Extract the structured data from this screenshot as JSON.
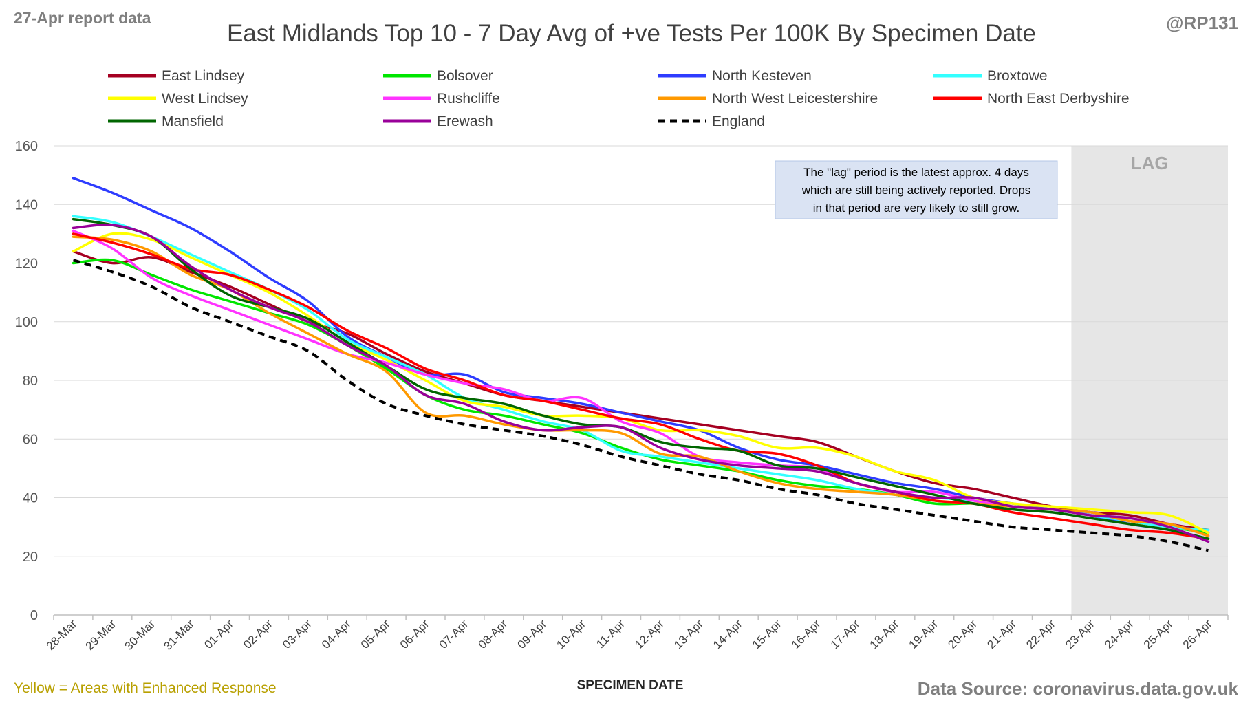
{
  "header": {
    "report_note": "27-Apr report data",
    "handle": "@RP131"
  },
  "footer": {
    "enhanced_note": "Yellow = Areas with Enhanced Response",
    "source": "Data Source: coronavirus.data.gov.uk"
  },
  "colors": {
    "lag_shading": "#e6e6e6",
    "grid": "#d9d9d9",
    "enhanced_note": "#b8a000",
    "muted_text": "#7f7f7f"
  },
  "chart_data": {
    "type": "line",
    "title": "East Midlands Top 10 - 7 Day Avg of +ve Tests Per 100K By Specimen Date",
    "xlabel": "SPECIMEN DATE",
    "ylabel": "",
    "ylim": [
      0,
      160
    ],
    "yticks": [
      0,
      20,
      40,
      60,
      80,
      100,
      120,
      140,
      160
    ],
    "grid": true,
    "legend_position": "top",
    "lag_label": "LAG",
    "lag_start": "23-Apr",
    "lag_end": "26-Apr",
    "annotation": [
      "The \"lag\" period is the latest approx. 4 days",
      "which are still being actively reported.  Drops",
      "in that period are very likely to still grow."
    ],
    "categories": [
      "28-Mar",
      "29-Mar",
      "30-Mar",
      "31-Mar",
      "01-Apr",
      "02-Apr",
      "03-Apr",
      "04-Apr",
      "05-Apr",
      "06-Apr",
      "07-Apr",
      "08-Apr",
      "09-Apr",
      "10-Apr",
      "11-Apr",
      "12-Apr",
      "13-Apr",
      "14-Apr",
      "15-Apr",
      "16-Apr",
      "17-Apr",
      "18-Apr",
      "19-Apr",
      "20-Apr",
      "21-Apr",
      "22-Apr",
      "23-Apr",
      "24-Apr",
      "25-Apr",
      "26-Apr"
    ],
    "series": [
      {
        "name": "East Lindsey",
        "color": "#a50021",
        "dash": false,
        "values": [
          124,
          120,
          122,
          117,
          112,
          106,
          100,
          96,
          89,
          83,
          79,
          75,
          73,
          71,
          69,
          67,
          65,
          63,
          61,
          59,
          54,
          49,
          45,
          43,
          40,
          37,
          35,
          34,
          31,
          29
        ]
      },
      {
        "name": "Bolsover",
        "color": "#00e600",
        "dash": false,
        "values": [
          120,
          121,
          116,
          111,
          107,
          103,
          99,
          92,
          84,
          75,
          70,
          68,
          65,
          62,
          57,
          53,
          51,
          49,
          46,
          44,
          43,
          41,
          38,
          38,
          37,
          36,
          35,
          32,
          30,
          28
        ]
      },
      {
        "name": "North Kesteven",
        "color": "#2e3cff",
        "dash": false,
        "values": [
          149,
          144,
          138,
          132,
          124,
          115,
          107,
          95,
          88,
          82,
          82,
          76,
          74,
          72,
          69,
          66,
          63,
          57,
          53,
          51,
          48,
          45,
          43,
          40,
          38,
          36,
          34,
          31,
          29,
          26
        ]
      },
      {
        "name": "Broxtowe",
        "color": "#33ffff",
        "dash": false,
        "values": [
          136,
          134,
          129,
          123,
          117,
          111,
          104,
          94,
          88,
          82,
          74,
          70,
          66,
          63,
          56,
          54,
          52,
          50,
          48,
          46,
          43,
          41,
          40,
          39,
          37,
          36,
          34,
          32,
          30,
          29
        ]
      },
      {
        "name": "West Lindsey",
        "color": "#ffff00",
        "dash": false,
        "values": [
          124,
          130,
          128,
          122,
          116,
          110,
          102,
          93,
          87,
          80,
          73,
          71,
          68,
          68,
          67,
          63,
          63,
          61,
          57,
          57,
          54,
          49,
          46,
          40,
          38,
          37,
          36,
          35,
          34,
          28
        ]
      },
      {
        "name": "Rushcliffe",
        "color": "#ff33ff",
        "dash": false,
        "values": [
          131,
          125,
          115,
          109,
          104,
          99,
          94,
          89,
          86,
          82,
          79,
          77,
          73,
          74,
          66,
          62,
          54,
          52,
          51,
          50,
          45,
          42,
          42,
          39,
          37,
          36,
          35,
          32,
          31,
          27
        ]
      },
      {
        "name": "North West Leicestershire",
        "color": "#ff9900",
        "dash": false,
        "values": [
          129,
          128,
          124,
          116,
          111,
          103,
          96,
          89,
          83,
          69,
          68,
          65,
          63,
          63,
          62,
          55,
          54,
          49,
          45,
          43,
          42,
          41,
          39,
          38,
          37,
          36,
          35,
          32,
          31,
          27
        ]
      },
      {
        "name": "North East Derbyshire",
        "color": "#ff0000",
        "dash": false,
        "values": [
          130,
          127,
          123,
          118,
          116,
          111,
          105,
          97,
          91,
          84,
          80,
          75,
          73,
          70,
          67,
          65,
          60,
          56,
          55,
          51,
          45,
          42,
          39,
          38,
          35,
          33,
          31,
          29,
          28,
          26
        ]
      },
      {
        "name": "Mansfield",
        "color": "#006600",
        "dash": false,
        "values": [
          135,
          133,
          129,
          118,
          109,
          105,
          101,
          93,
          85,
          77,
          74,
          72,
          68,
          65,
          64,
          59,
          57,
          56,
          51,
          50,
          47,
          44,
          41,
          38,
          36,
          35,
          33,
          31,
          29,
          26
        ]
      },
      {
        "name": "Erewash",
        "color": "#990099",
        "dash": false,
        "values": [
          132,
          133,
          129,
          119,
          111,
          105,
          100,
          92,
          85,
          75,
          72,
          66,
          63,
          64,
          64,
          57,
          53,
          51,
          50,
          49,
          45,
          42,
          40,
          40,
          37,
          36,
          34,
          33,
          30,
          25
        ]
      },
      {
        "name": "England",
        "color": "#000000",
        "dash": true,
        "values": [
          121,
          117,
          112,
          105,
          100,
          95,
          90,
          80,
          72,
          68,
          65,
          63,
          61,
          58,
          54,
          51,
          48,
          46,
          43,
          41,
          38,
          36,
          34,
          32,
          30,
          29,
          28,
          27,
          25,
          22
        ]
      }
    ]
  }
}
